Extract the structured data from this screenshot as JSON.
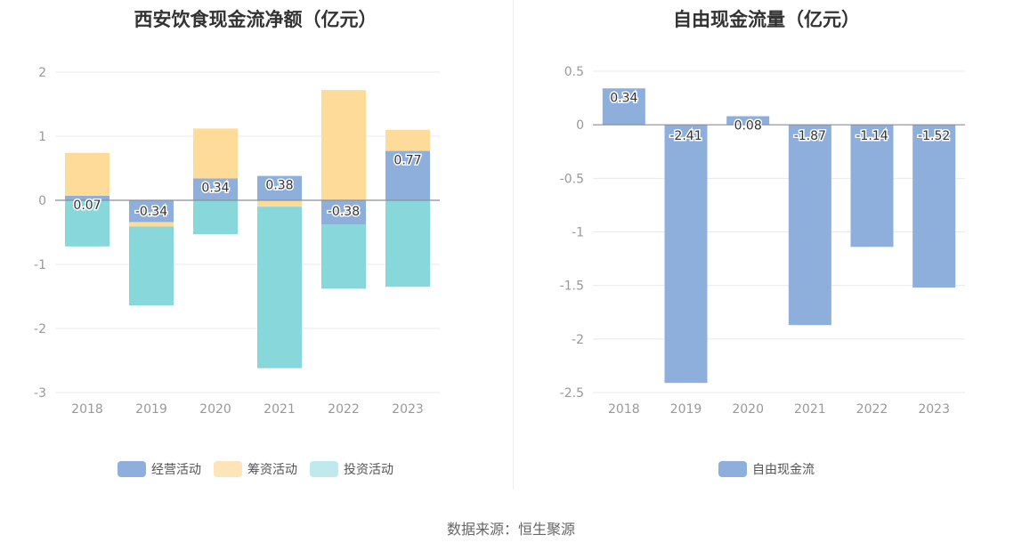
{
  "chart_data": [
    {
      "type": "bar",
      "stacked": true,
      "title": "西安饮食现金流净额（亿元）",
      "categories": [
        "2018",
        "2019",
        "2020",
        "2021",
        "2022",
        "2023"
      ],
      "ylim": [
        -3,
        2
      ],
      "yticks": [
        2,
        1,
        0,
        -1,
        -2,
        -3
      ],
      "series": [
        {
          "name": "经营活动",
          "color": "#8eaedc",
          "values": [
            0.07,
            -0.34,
            0.34,
            0.38,
            -0.38,
            0.77
          ],
          "labels": [
            "0.07",
            "-0.34",
            "0.34",
            "0.38",
            "-0.38",
            "0.77"
          ]
        },
        {
          "name": "筹资活动",
          "color": "#ffdb9a",
          "values": [
            0.67,
            -0.07,
            0.78,
            -0.1,
            1.72,
            0.33
          ]
        },
        {
          "name": "投资活动",
          "color": "#87d7db",
          "values": [
            -0.72,
            -1.23,
            -0.53,
            -2.52,
            -1.0,
            -1.35
          ]
        }
      ],
      "legend_colors": [
        "#8eaedc",
        "#fde5b9",
        "#bfe9ec"
      ]
    },
    {
      "type": "bar",
      "title": "自由现金流量（亿元）",
      "categories": [
        "2018",
        "2019",
        "2020",
        "2021",
        "2022",
        "2023"
      ],
      "ylim": [
        -2.5,
        0.5
      ],
      "yticks": [
        "0.5",
        "0",
        "-0.5",
        "-1",
        "-1.5",
        "-2",
        "-2.5"
      ],
      "series": [
        {
          "name": "自由现金流",
          "color": "#8eaedc",
          "values": [
            0.34,
            -2.41,
            0.08,
            -1.87,
            -1.14,
            -1.52
          ],
          "labels": [
            "0.34",
            "-2.41",
            "0.08",
            "-1.87",
            "-1.14",
            "-1.52"
          ]
        }
      ]
    }
  ],
  "source": "数据来源：恒生聚源"
}
